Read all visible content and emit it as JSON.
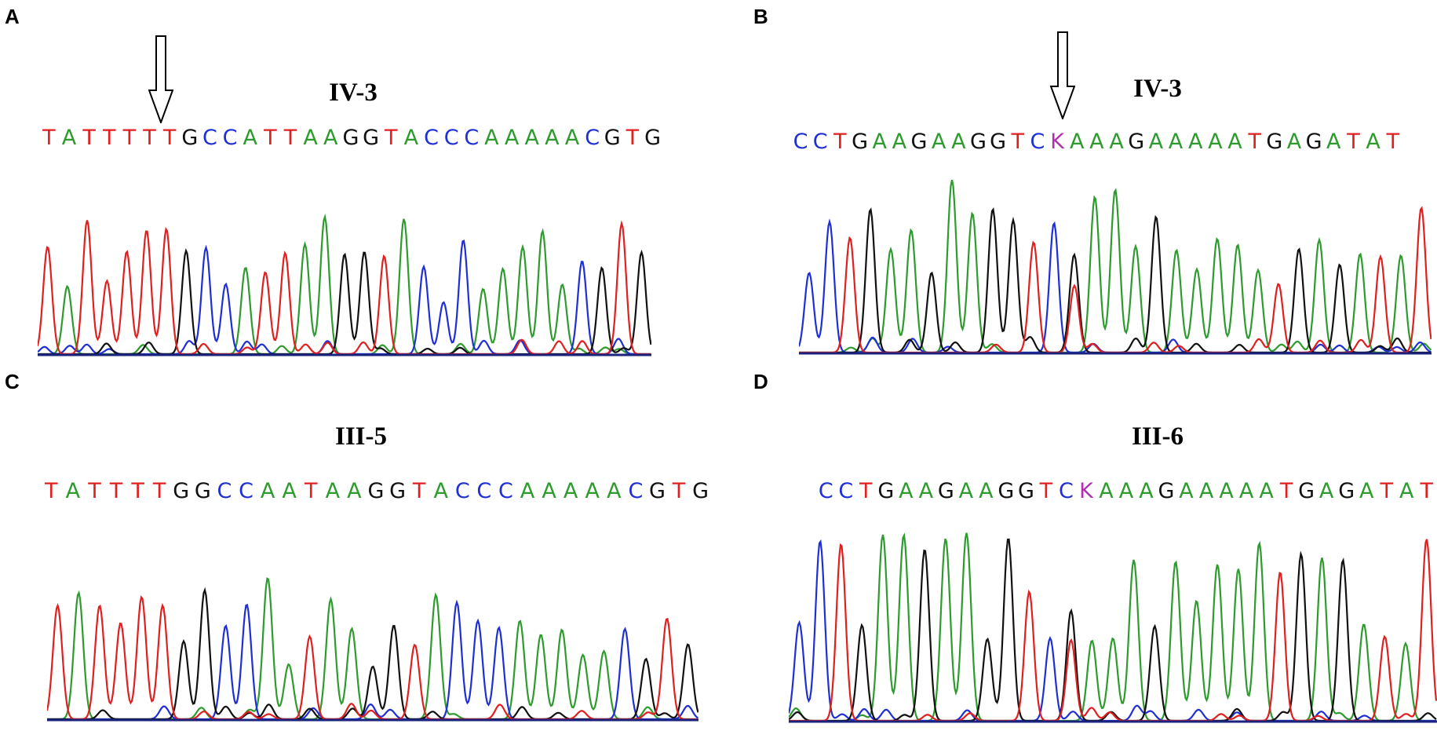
{
  "colors": {
    "A": "#2e9b2e",
    "C": "#1f2fd6",
    "G": "#111111",
    "T": "#e02020",
    "K": "#b030b0"
  },
  "panels": [
    {
      "id": "a",
      "letter": "A",
      "title": "IV-3",
      "sequence": "TATTTTTGCCATTAAGGTACCCAAAAACGTG",
      "arrow": true,
      "seed": 11
    },
    {
      "id": "b",
      "letter": "B",
      "title": "IV-3",
      "sequence": "CCTGAAGAAGGTCKAAAGAAAAATGAGATAT",
      "arrow": true,
      "seed": 23
    },
    {
      "id": "c",
      "letter": "C",
      "title": "III-5",
      "sequence": "TATTTTGGCCAATAAGGTACCCAAAAACGTG",
      "arrow": false,
      "seed": 37
    },
    {
      "id": "d",
      "letter": "D",
      "title": "III-6",
      "sequence": "CCTGAAGAAGGTCKAAAGAAAAATGAGATAT",
      "arrow": false,
      "seed": 51
    }
  ]
}
